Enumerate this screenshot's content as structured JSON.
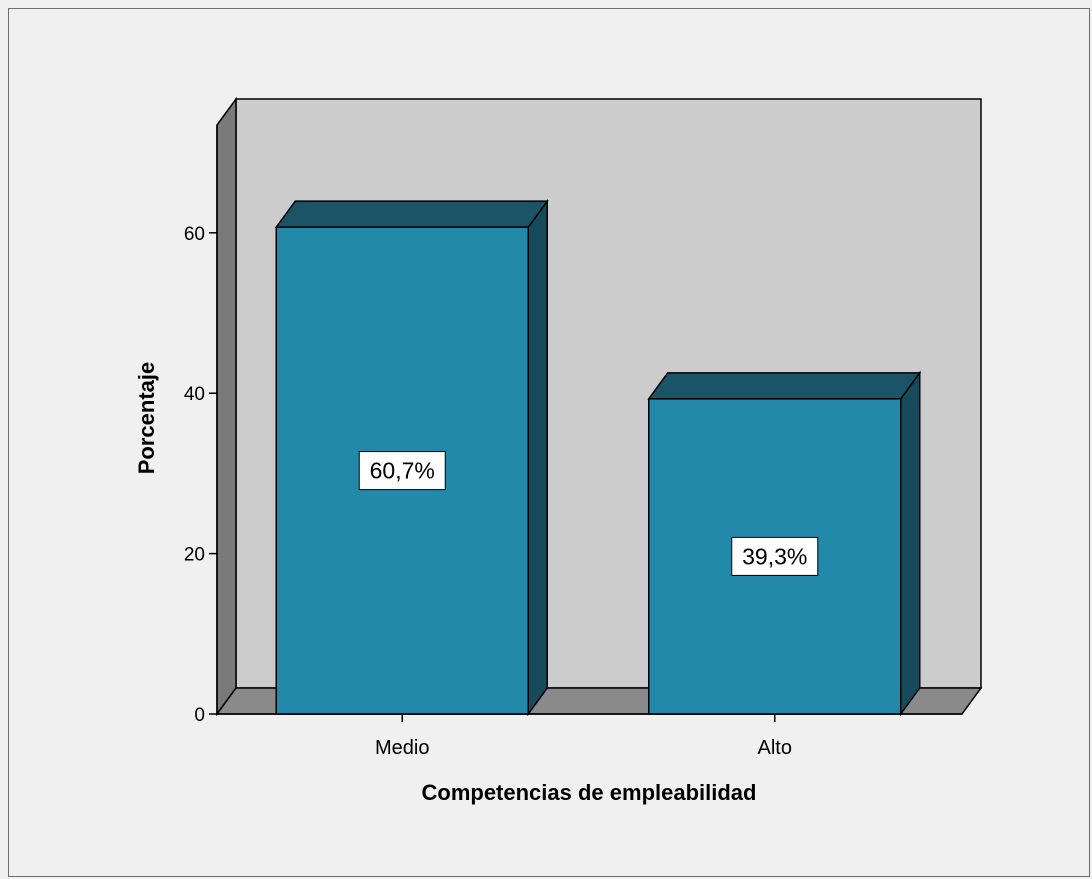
{
  "chart_data": {
    "type": "bar",
    "style": "3d",
    "title": "",
    "xlabel": "Competencias de empleabilidad",
    "ylabel": "Porcentaje",
    "categories": [
      "Medio",
      "Alto"
    ],
    "values": [
      60.7,
      39.3
    ],
    "data_labels": [
      "60,7%",
      "39,3%"
    ],
    "yticks": [
      0,
      20,
      40,
      60
    ],
    "ylim": [
      0,
      75
    ],
    "grid": false,
    "colors": {
      "bar_front": "#2389ab",
      "bar_top": "#1b5466",
      "bar_side": "#174a5a",
      "plot_back": "#cccccc",
      "plot_wall": "#7a7a7a",
      "plot_floor": "#8a8a8a",
      "background": "#f0f0f0"
    }
  }
}
